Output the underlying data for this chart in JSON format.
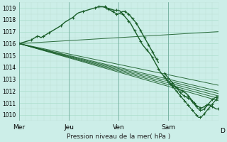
{
  "background_color": "#cceee8",
  "grid_color_major": "#aaddcc",
  "grid_color_minor": "#bbddd4",
  "line_color": "#1a5e2a",
  "ylabel": "Pression niveau de la mer( hPa )",
  "ylim": [
    1009.5,
    1019.5
  ],
  "yticks": [
    1010,
    1011,
    1012,
    1013,
    1014,
    1015,
    1016,
    1017,
    1018,
    1019
  ],
  "day_labels": [
    "Mer",
    "Jeu",
    "Ven",
    "Sam",
    "D"
  ],
  "day_positions": [
    0.0,
    0.25,
    0.5,
    0.75,
    1.0
  ],
  "xlim": [
    0.0,
    1.0
  ],
  "main_x": [
    0.0,
    0.02,
    0.04,
    0.06,
    0.07,
    0.08,
    0.09,
    0.1,
    0.11,
    0.12,
    0.13,
    0.14,
    0.15,
    0.17,
    0.19,
    0.21,
    0.23,
    0.25,
    0.27,
    0.29,
    0.3,
    0.32,
    0.34,
    0.36,
    0.38,
    0.4,
    0.42,
    0.44,
    0.46,
    0.48,
    0.49,
    0.5,
    0.51,
    0.52,
    0.53,
    0.54,
    0.55,
    0.56,
    0.57,
    0.58,
    0.59,
    0.6,
    0.61,
    0.62,
    0.63,
    0.64,
    0.65,
    0.66,
    0.67,
    0.68,
    0.69,
    0.7,
    0.71,
    0.72,
    0.73,
    0.74,
    0.75,
    0.76,
    0.77,
    0.78,
    0.79,
    0.8,
    0.81,
    0.82,
    0.83,
    0.84,
    0.85,
    0.86,
    0.87,
    0.88,
    0.89,
    0.9,
    0.91,
    0.92,
    0.93,
    0.94,
    0.95,
    0.96,
    0.97,
    0.98,
    0.99,
    1.0
  ],
  "main_y": [
    1016.0,
    1016.1,
    1016.2,
    1016.3,
    1016.4,
    1016.5,
    1016.6,
    1016.6,
    1016.5,
    1016.6,
    1016.7,
    1016.8,
    1016.9,
    1017.1,
    1017.3,
    1017.5,
    1017.8,
    1018.0,
    1018.2,
    1018.5,
    1018.6,
    1018.7,
    1018.8,
    1018.9,
    1019.0,
    1019.1,
    1019.1,
    1019.0,
    1018.9,
    1018.8,
    1018.8,
    1018.8,
    1018.7,
    1018.5,
    1018.3,
    1018.1,
    1017.9,
    1017.7,
    1017.4,
    1017.1,
    1016.8,
    1016.5,
    1016.2,
    1015.9,
    1015.7,
    1015.5,
    1015.3,
    1015.1,
    1014.8,
    1014.5,
    1014.2,
    1013.9,
    1013.6,
    1013.4,
    1013.2,
    1013.0,
    1012.8,
    1012.6,
    1012.5,
    1012.4,
    1012.3,
    1012.2,
    1012.1,
    1012.0,
    1011.9,
    1011.8,
    1011.6,
    1011.4,
    1011.2,
    1011.0,
    1010.8,
    1010.7,
    1010.6,
    1010.6,
    1010.7,
    1010.8,
    1010.9,
    1010.8,
    1010.7,
    1010.6,
    1010.5,
    1010.5
  ],
  "straight_lines": [
    {
      "x0": 0.0,
      "y0": 1016.0,
      "x1": 1.0,
      "y1": 1017.0
    },
    {
      "x0": 0.0,
      "y0": 1016.0,
      "x1": 1.0,
      "y1": 1012.5
    },
    {
      "x0": 0.0,
      "y0": 1016.0,
      "x1": 1.0,
      "y1": 1012.0
    },
    {
      "x0": 0.0,
      "y0": 1016.0,
      "x1": 1.0,
      "y1": 1011.8
    },
    {
      "x0": 0.0,
      "y0": 1016.0,
      "x1": 1.0,
      "y1": 1011.6
    },
    {
      "x0": 0.0,
      "y0": 1016.0,
      "x1": 1.0,
      "y1": 1011.4
    },
    {
      "x0": 0.0,
      "y0": 1016.0,
      "x1": 1.0,
      "y1": 1011.2
    }
  ],
  "wiggly_x": [
    0.73,
    0.74,
    0.75,
    0.76,
    0.77,
    0.78,
    0.79,
    0.8,
    0.81,
    0.82,
    0.83,
    0.84,
    0.85,
    0.86,
    0.87,
    0.88,
    0.89,
    0.9,
    0.91,
    0.92,
    0.93,
    0.94,
    0.95,
    0.96,
    0.97,
    0.98,
    0.99,
    1.0
  ],
  "wiggly_y": [
    1013.5,
    1013.3,
    1013.1,
    1012.9,
    1012.7,
    1012.5,
    1012.3,
    1012.1,
    1011.9,
    1011.7,
    1011.6,
    1011.5,
    1011.4,
    1011.3,
    1011.1,
    1010.9,
    1010.7,
    1010.5,
    1010.4,
    1010.4,
    1010.5,
    1010.7,
    1010.9,
    1011.1,
    1011.3,
    1011.4,
    1011.5,
    1011.6
  ],
  "wiggly2_x": [
    0.73,
    0.74,
    0.75,
    0.76,
    0.77,
    0.78,
    0.79,
    0.8,
    0.81,
    0.82,
    0.83,
    0.84,
    0.85,
    0.86,
    0.87,
    0.88,
    0.89,
    0.9,
    0.91,
    0.92,
    0.93,
    0.94,
    0.95,
    0.96,
    0.97,
    0.98,
    0.99,
    1.0
  ],
  "wiggly2_y": [
    1013.2,
    1013.0,
    1012.8,
    1012.6,
    1012.4,
    1012.2,
    1012.0,
    1011.8,
    1011.6,
    1011.4,
    1011.2,
    1011.0,
    1010.8,
    1010.6,
    1010.4,
    1010.2,
    1010.0,
    1009.8,
    1009.8,
    1009.9,
    1010.1,
    1010.3,
    1010.5,
    1010.7,
    1010.9,
    1011.1,
    1011.3,
    1011.5
  ],
  "peak_area_x": [
    0.4,
    0.42,
    0.43,
    0.44,
    0.45,
    0.46,
    0.47,
    0.48,
    0.49,
    0.5,
    0.51,
    0.52,
    0.53,
    0.54,
    0.55,
    0.56,
    0.57,
    0.58,
    0.59,
    0.6,
    0.61,
    0.62,
    0.63,
    0.64,
    0.65,
    0.66,
    0.67,
    0.68,
    0.69,
    0.7
  ],
  "peak_area_y": [
    1019.1,
    1019.1,
    1019.1,
    1019.0,
    1018.9,
    1018.8,
    1018.7,
    1018.6,
    1018.5,
    1018.5,
    1018.6,
    1018.7,
    1018.7,
    1018.6,
    1018.5,
    1018.3,
    1018.1,
    1017.9,
    1017.7,
    1017.4,
    1017.1,
    1016.8,
    1016.5,
    1016.2,
    1015.9,
    1015.6,
    1015.3,
    1015.0,
    1014.7,
    1014.4
  ]
}
